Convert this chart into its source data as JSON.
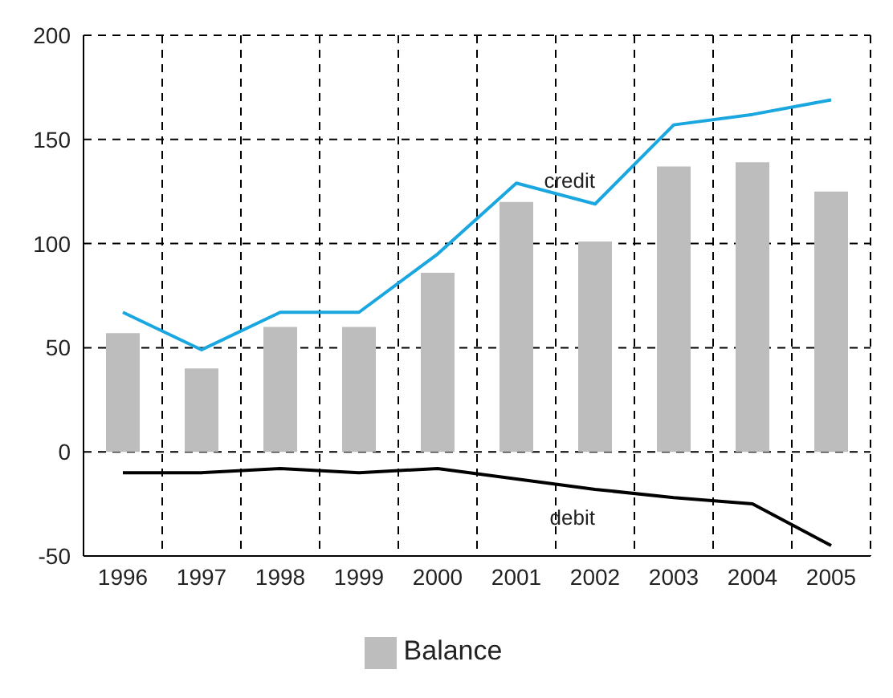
{
  "chart_data": {
    "type": "bar",
    "categories": [
      "1996",
      "1997",
      "1998",
      "1999",
      "2000",
      "2001",
      "2002",
      "2003",
      "2004",
      "2005"
    ],
    "series": [
      {
        "name": "Balance",
        "color": "#bdbdbd",
        "values": [
          57,
          40,
          60,
          60,
          86,
          120,
          101,
          137,
          139,
          125
        ]
      },
      {
        "name": "credit",
        "type": "line",
        "color": "#1aa7e0",
        "values": [
          67,
          49,
          67,
          67,
          95,
          129,
          119,
          157,
          162,
          169
        ]
      },
      {
        "name": "debit",
        "type": "line",
        "color": "#000000",
        "values": [
          -10,
          -10,
          -8,
          -10,
          -8,
          -13,
          -18,
          -22,
          -25,
          -45
        ]
      }
    ],
    "ylim": [
      -50,
      200
    ],
    "yticks": [
      -50,
      0,
      50,
      100,
      150,
      200
    ],
    "grid": true,
    "legend": "bottom",
    "marker": "none",
    "line_style": "solid"
  }
}
